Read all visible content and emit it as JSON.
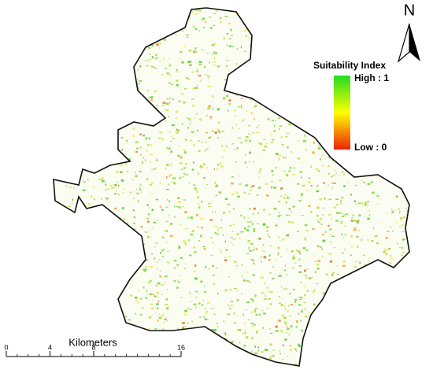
{
  "north_arrow": {
    "label": "N"
  },
  "legend": {
    "title": "Suitability Index",
    "high": "High : 1",
    "low": "Low : 0"
  },
  "scale_bar": {
    "unit": "Kilometers",
    "ticks": [
      0,
      4,
      8,
      16
    ]
  }
}
